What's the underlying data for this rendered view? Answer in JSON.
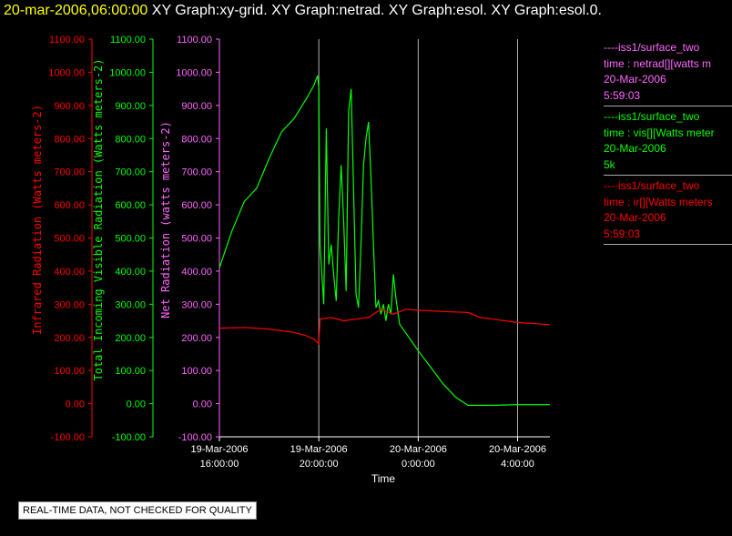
{
  "header": {
    "timestamp": "20-mar-2006,06:00:00",
    "graphs": "XY Graph:xy-grid.  XY Graph:netrad.  XY Graph:esol.  XY Graph:esol.0."
  },
  "notice": "REAL-TIME DATA, NOT CHECKED FOR QUALITY",
  "colors": {
    "red": "#ff0000",
    "green": "#00ff00",
    "magenta": "#ff66ff",
    "white": "#ffffff"
  },
  "legend": [
    {
      "name": "----iss1/surface_two",
      "line2": "time : netrad[][watts m",
      "line3": "20-Mar-2006",
      "line4": "5:59:03",
      "color": "#ff66ff"
    },
    {
      "name": "----iss1/surface_two",
      "line2": "time : vis[][Watts meter",
      "line3": "20-Mar-2006",
      "line4": "5k",
      "color": "#00ff00"
    },
    {
      "name": "----iss1/surface_two",
      "line2": "time : ir[][Watts meters",
      "line3": "20-Mar-2006",
      "line4": "5:59:03",
      "color": "#ff0000"
    }
  ],
  "chart_data": {
    "type": "line",
    "xlabel": "Time",
    "x_ticks": [
      {
        "date": "19-Mar-2006",
        "time": "16:00:00",
        "hours": 16
      },
      {
        "date": "19-Mar-2006",
        "time": "20:00:00",
        "hours": 20
      },
      {
        "date": "20-Mar-2006",
        "time": "0:00:00",
        "hours": 24
      },
      {
        "date": "20-Mar-2006",
        "time": "4:00:00",
        "hours": 28
      }
    ],
    "xlim_hours": [
      16,
      29.3
    ],
    "ylim": [
      -100,
      1100
    ],
    "y_ticks": [
      "1100.00",
      "1000.00",
      "900.00",
      "800.00",
      "700.00",
      "600.00",
      "500.00",
      "400.00",
      "300.00",
      "200.00",
      "100.00",
      "0.00",
      "-100.00"
    ],
    "axes": [
      {
        "label": "Infrared Radiation (Watts meters-2)",
        "color": "#ff0000"
      },
      {
        "label": "Total Incoming Visible Radiation (Watts meters-2)",
        "color": "#00ff00"
      },
      {
        "label": "Net Radiation (watts meters-2)",
        "color": "#ff66ff"
      }
    ],
    "series": [
      {
        "name": "vis",
        "color": "#00ff00",
        "points": [
          [
            16.0,
            410
          ],
          [
            16.5,
            520
          ],
          [
            17.0,
            610
          ],
          [
            17.5,
            650
          ],
          [
            18.0,
            740
          ],
          [
            18.5,
            820
          ],
          [
            19.0,
            860
          ],
          [
            19.5,
            920
          ],
          [
            19.8,
            960
          ],
          [
            19.95,
            990
          ],
          [
            20.0,
            950
          ],
          [
            20.05,
            480
          ],
          [
            20.2,
            300
          ],
          [
            20.3,
            830
          ],
          [
            20.4,
            420
          ],
          [
            20.5,
            480
          ],
          [
            20.6,
            390
          ],
          [
            20.7,
            310
          ],
          [
            20.8,
            560
          ],
          [
            20.9,
            720
          ],
          [
            21.0,
            550
          ],
          [
            21.1,
            340
          ],
          [
            21.2,
            880
          ],
          [
            21.3,
            950
          ],
          [
            21.4,
            640
          ],
          [
            21.5,
            330
          ],
          [
            21.6,
            290
          ],
          [
            21.7,
            490
          ],
          [
            21.8,
            720
          ],
          [
            21.9,
            800
          ],
          [
            22.0,
            850
          ],
          [
            22.1,
            680
          ],
          [
            22.2,
            480
          ],
          [
            22.3,
            290
          ],
          [
            22.4,
            310
          ],
          [
            22.5,
            270
          ],
          [
            22.6,
            300
          ],
          [
            22.7,
            250
          ],
          [
            22.8,
            300
          ],
          [
            22.9,
            270
          ],
          [
            23.0,
            390
          ],
          [
            23.1,
            320
          ],
          [
            23.25,
            240
          ],
          [
            24.0,
            160
          ],
          [
            24.5,
            110
          ],
          [
            25.0,
            60
          ],
          [
            25.5,
            20
          ],
          [
            26.0,
            -5
          ],
          [
            27.0,
            -5
          ],
          [
            28.0,
            -3
          ],
          [
            29.0,
            -3
          ],
          [
            29.3,
            -3
          ]
        ]
      },
      {
        "name": "ir",
        "color": "#ff0000",
        "points": [
          [
            16.0,
            228
          ],
          [
            17.0,
            230
          ],
          [
            18.0,
            225
          ],
          [
            19.0,
            215
          ],
          [
            19.5,
            205
          ],
          [
            19.8,
            195
          ],
          [
            20.0,
            180
          ],
          [
            20.05,
            255
          ],
          [
            20.5,
            260
          ],
          [
            21.0,
            250
          ],
          [
            21.5,
            255
          ],
          [
            22.0,
            260
          ],
          [
            22.5,
            285
          ],
          [
            23.0,
            270
          ],
          [
            23.5,
            285
          ],
          [
            24.0,
            282
          ],
          [
            25.0,
            278
          ],
          [
            26.0,
            275
          ],
          [
            26.5,
            260
          ],
          [
            27.0,
            255
          ],
          [
            28.0,
            245
          ],
          [
            29.0,
            240
          ],
          [
            29.3,
            238
          ]
        ]
      }
    ]
  }
}
